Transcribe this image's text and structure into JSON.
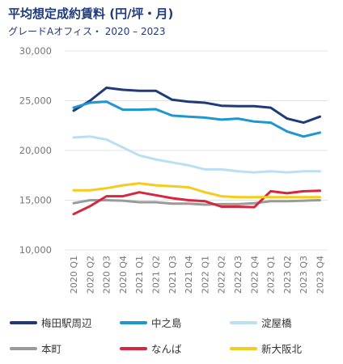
{
  "header": {
    "title": "平均想定成約賃料 (円/坪・月)",
    "subtitle": "グレードAオフィス・ 2020 – 2023"
  },
  "chart_data": {
    "type": "line",
    "title": "平均想定成約賃料 (円/坪・月)",
    "subtitle": "グレードAオフィス・ 2020 – 2023",
    "xlabel": "",
    "ylabel": "",
    "ylim": [
      10000,
      30000
    ],
    "yticks": [
      10000,
      15000,
      20000,
      25000,
      30000
    ],
    "ytick_labels": [
      "10,000",
      "15,000",
      "20,000",
      "25,000",
      "30,000"
    ],
    "grid": "horizontal",
    "legend_position": "bottom",
    "categories": [
      "2020 Q1",
      "2020 Q2",
      "2020 Q3",
      "2020 Q4",
      "2021 Q1",
      "2021 Q2",
      "2021 Q3",
      "2021 Q4",
      "2022 Q1",
      "2022 Q2",
      "2022 Q3",
      "2022 Q4",
      "2023 Q1",
      "2023 Q2",
      "2023 Q3",
      "2023 Q4"
    ],
    "series": [
      {
        "name": "梅田駅周辺",
        "color": "#1f3a7a",
        "values": [
          24000,
          25000,
          26300,
          26100,
          26000,
          26000,
          25100,
          24900,
          24800,
          24500,
          24450,
          24450,
          24300,
          23200,
          22800,
          23400
        ]
      },
      {
        "name": "中之島",
        "color": "#1e96d2",
        "values": [
          24300,
          24800,
          24900,
          24100,
          24100,
          24150,
          23500,
          23400,
          23300,
          23100,
          23200,
          22900,
          22800,
          21900,
          21400,
          21800
        ]
      },
      {
        "name": "淀屋橋",
        "color": "#b9e0f2",
        "values": [
          21300,
          21400,
          21100,
          20300,
          19500,
          19100,
          18800,
          18500,
          18100,
          18100,
          17900,
          17800,
          17900,
          17800,
          17900,
          17900
        ]
      },
      {
        "name": "本町",
        "color": "#9a9a9a",
        "values": [
          14700,
          15000,
          15000,
          14950,
          14800,
          14800,
          14650,
          14650,
          14550,
          14600,
          14600,
          14700,
          14900,
          14900,
          14950,
          15000
        ]
      },
      {
        "name": "なんば",
        "color": "#d7263d",
        "values": [
          13600,
          14400,
          15400,
          15400,
          15800,
          15500,
          15200,
          15000,
          14900,
          14350,
          14350,
          14300,
          15900,
          15700,
          15900,
          15950
        ]
      },
      {
        "name": "新大阪北",
        "color": "#f5cc1b",
        "values": [
          16000,
          16000,
          16200,
          16500,
          16700,
          16500,
          16400,
          16300,
          15800,
          15400,
          15300,
          15300,
          15300,
          15300,
          15300,
          15300
        ]
      }
    ]
  }
}
